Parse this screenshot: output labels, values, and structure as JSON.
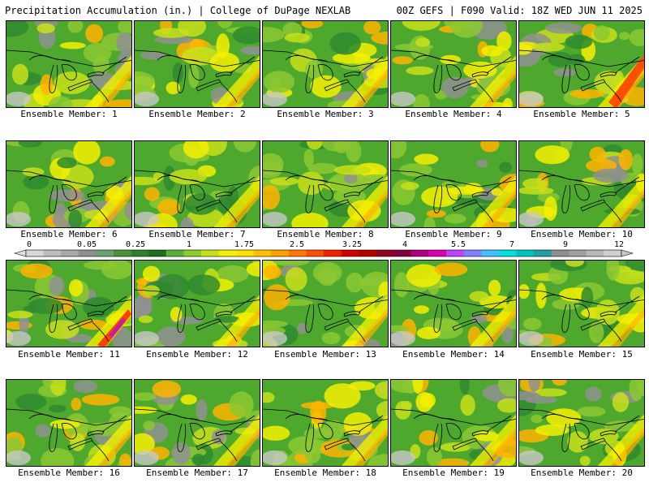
{
  "header": {
    "title_left": "Precipitation Accumulation (in.) | College of DuPage NEXLAB",
    "title_right": "00Z GEFS | F090 Valid: 18Z WED JUN 11 2025"
  },
  "colorbar": {
    "tick_labels": [
      "0",
      "0.05",
      "0.25",
      "1",
      "1.75",
      "2.5",
      "3.25",
      "4",
      "5.5",
      "7",
      "9",
      "12"
    ],
    "colors": [
      "#d8d8d8",
      "#bdbdbd",
      "#a8a8a8",
      "#8f8f8f",
      "#6fa06f",
      "#4e8f3e",
      "#2f7f2f",
      "#1e6e1e",
      "#58b03a",
      "#8ccc2c",
      "#c8e01a",
      "#f0f000",
      "#ffe000",
      "#ffc000",
      "#ffa000",
      "#ff7800",
      "#ff5000",
      "#f02000",
      "#d00000",
      "#b00000",
      "#900020",
      "#800040",
      "#b0007f",
      "#d800b0",
      "#c040ff",
      "#8080ff",
      "#40c0ff",
      "#00e0e0",
      "#00c0c0",
      "#20a0a0",
      "#909090",
      "#a0a0a0",
      "#b8b8b8",
      "#d0d0d0"
    ]
  },
  "panels": [
    {
      "label": "Ensemble Member: 1"
    },
    {
      "label": "Ensemble Member: 2"
    },
    {
      "label": "Ensemble Member: 3"
    },
    {
      "label": "Ensemble Member: 4"
    },
    {
      "label": "Ensemble Member: 5"
    },
    {
      "label": "Ensemble Member: 6"
    },
    {
      "label": "Ensemble Member: 7"
    },
    {
      "label": "Ensemble Member: 8"
    },
    {
      "label": "Ensemble Member: 9"
    },
    {
      "label": "Ensemble Member: 10"
    },
    {
      "label": "Ensemble Member: 11"
    },
    {
      "label": "Ensemble Member: 12"
    },
    {
      "label": "Ensemble Member: 13"
    },
    {
      "label": "Ensemble Member: 14"
    },
    {
      "label": "Ensemble Member: 15"
    },
    {
      "label": "Ensemble Member: 16"
    },
    {
      "label": "Ensemble Member: 17"
    },
    {
      "label": "Ensemble Member: 18"
    },
    {
      "label": "Ensemble Member: 19"
    },
    {
      "label": "Ensemble Member: 20"
    }
  ],
  "map_colors": {
    "dark_green": "#2e8a2e",
    "green": "#4ea82e",
    "light_green": "#8cc832",
    "yellow_green": "#c8e01a",
    "yellow": "#f4f000",
    "orange": "#ffb400",
    "red": "#ff4000",
    "magenta": "#c020a0",
    "gray": "#909090",
    "light_gray": "#c8c8c8"
  }
}
